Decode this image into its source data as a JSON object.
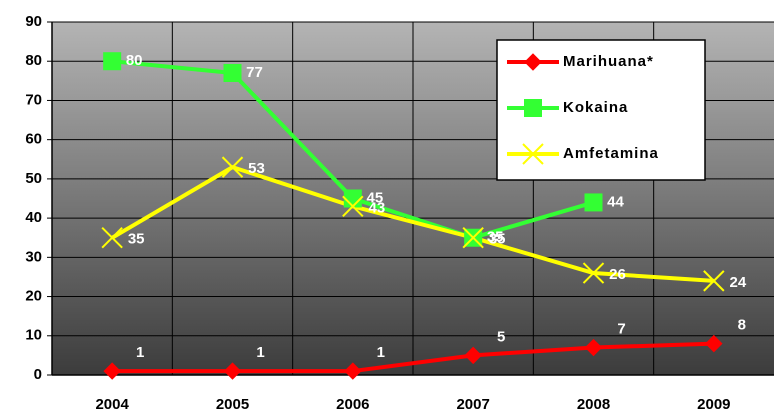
{
  "chart_data": {
    "type": "line",
    "categories": [
      "2004",
      "2005",
      "2006",
      "2007",
      "2008",
      "2009"
    ],
    "series": [
      {
        "name": "Marihuana*",
        "color": "#ff0000",
        "marker": "diamond",
        "values": [
          1,
          1,
          1,
          5,
          7,
          8
        ]
      },
      {
        "name": "Kokaina",
        "color": "#33ff33",
        "marker": "square",
        "values": [
          80,
          77,
          45,
          35,
          44,
          null
        ]
      },
      {
        "name": "Amfetamina",
        "color": "#ffff00",
        "marker": "x",
        "values": [
          35,
          53,
          43,
          35,
          26,
          24
        ]
      }
    ],
    "ylim": [
      0,
      90
    ],
    "yticks": [
      0,
      10,
      20,
      30,
      40,
      50,
      60,
      70,
      80,
      90
    ],
    "grid": true,
    "legend": "upper right"
  }
}
